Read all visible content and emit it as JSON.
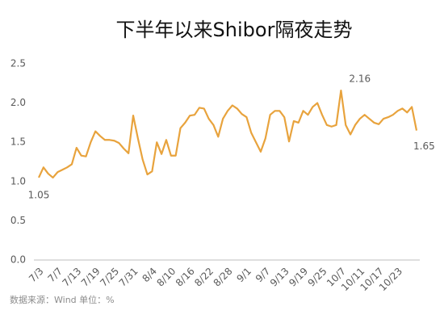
{
  "chart_data": {
    "type": "line",
    "title": "下半年以来Shibor隔夜走势",
    "source": "数据来源：Wind   单位：%",
    "categories": [
      "7/3",
      null,
      null,
      null,
      "7/7",
      null,
      null,
      null,
      "7/13",
      null,
      null,
      null,
      "7/19",
      null,
      null,
      null,
      "7/25",
      null,
      null,
      null,
      "7/31",
      null,
      null,
      null,
      "8/4",
      null,
      null,
      null,
      "8/10",
      null,
      null,
      null,
      "8/16",
      null,
      null,
      null,
      "8/22",
      null,
      null,
      null,
      "8/28",
      null,
      null,
      null,
      "9/1",
      null,
      null,
      null,
      "9/7",
      null,
      null,
      null,
      "9/13",
      null,
      null,
      null,
      "9/19",
      null,
      null,
      null,
      "9/25",
      null,
      null,
      null,
      "10/7",
      null,
      null,
      null,
      "10/11",
      null,
      null,
      null,
      "10/17",
      null,
      null,
      null,
      "10/23",
      null,
      null,
      null,
      null
    ],
    "series": [
      {
        "color": "#e8a33d",
        "values": [
          1.05,
          1.18,
          1.1,
          1.05,
          1.12,
          1.15,
          1.18,
          1.22,
          1.43,
          1.33,
          1.32,
          1.5,
          1.64,
          1.58,
          1.53,
          1.53,
          1.52,
          1.49,
          1.42,
          1.36,
          1.84,
          1.55,
          1.28,
          1.09,
          1.13,
          1.5,
          1.35,
          1.53,
          1.33,
          1.33,
          1.68,
          1.75,
          1.84,
          1.85,
          1.94,
          1.93,
          1.8,
          1.72,
          1.57,
          1.8,
          1.9,
          1.97,
          1.93,
          1.86,
          1.82,
          1.62,
          1.5,
          1.38,
          1.55,
          1.85,
          1.9,
          1.9,
          1.82,
          1.51,
          1.77,
          1.75,
          1.9,
          1.85,
          1.95,
          2.0,
          1.85,
          1.72,
          1.7,
          1.72,
          2.16,
          1.72,
          1.6,
          1.72,
          1.8,
          1.85,
          1.8,
          1.75,
          1.73,
          1.8,
          1.82,
          1.85,
          1.9,
          1.93,
          1.88,
          1.95,
          1.65
        ]
      }
    ],
    "ylim": [
      0,
      2.5
    ],
    "yticks": [
      {
        "value": 0,
        "label": "0.0"
      },
      0.5,
      {
        "value": 1,
        "label": "1.0"
      },
      1.5,
      {
        "value": 2,
        "label": "2.0"
      },
      2.5
    ]
  }
}
